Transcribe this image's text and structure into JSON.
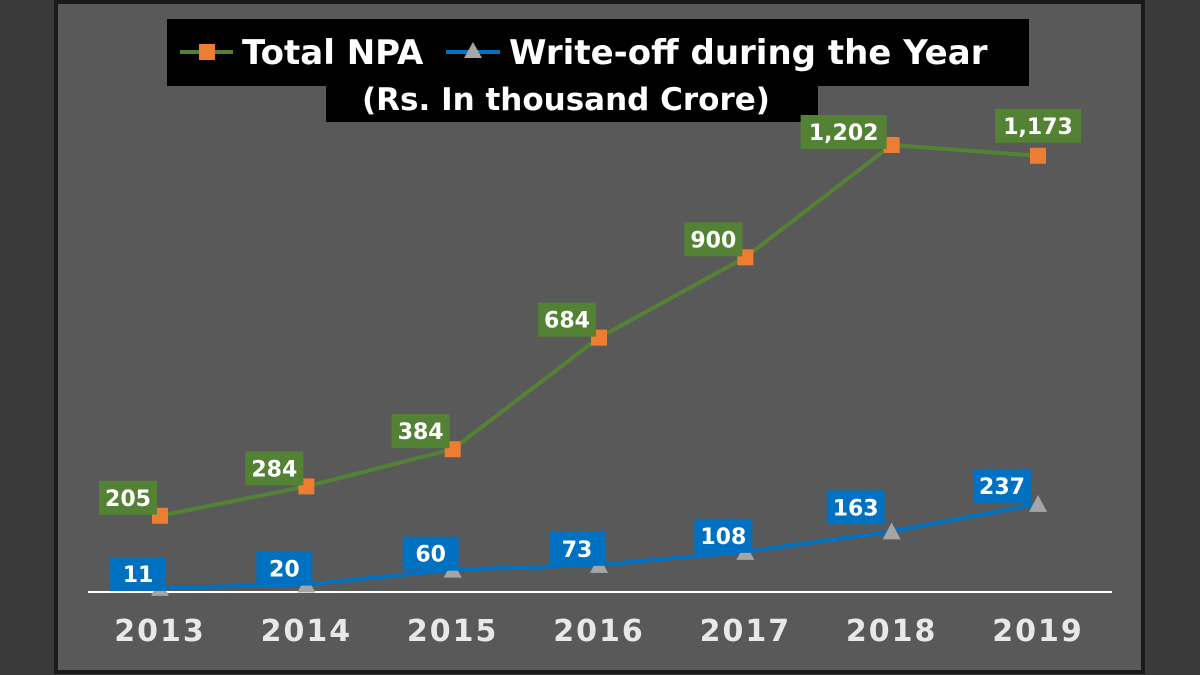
{
  "chart_data": {
    "type": "line",
    "categories": [
      "2013",
      "2014",
      "2015",
      "2016",
      "2017",
      "2018",
      "2019"
    ],
    "series": [
      {
        "name": "Total NPA",
        "values": [
          205,
          284,
          384,
          684,
          900,
          1202,
          1173
        ],
        "labels": [
          "205",
          "284",
          "384",
          "684",
          "900",
          "1,202",
          "1,173"
        ],
        "line_color": "#548235",
        "marker_color": "#ed7d31",
        "marker": "square"
      },
      {
        "name": "Write-off during the Year",
        "values": [
          11,
          20,
          60,
          73,
          108,
          163,
          237
        ],
        "labels": [
          "11",
          "20",
          "60",
          "73",
          "108",
          "163",
          "237"
        ],
        "line_color": "#0070c0",
        "marker_color": "#a5a5a5",
        "marker": "triangle"
      }
    ],
    "subtitle": "(Rs. In thousand Crore)",
    "xlabel": "",
    "ylabel": "",
    "ylim": [
      0,
      1350
    ],
    "grid": false,
    "legend_position": "top"
  },
  "colors": {
    "page_background": "#3a3a3a",
    "plot_background": "#595959",
    "axis_line": "#ffffff",
    "label_text": "#ffffff",
    "tick_text": "#e8e8e8"
  }
}
